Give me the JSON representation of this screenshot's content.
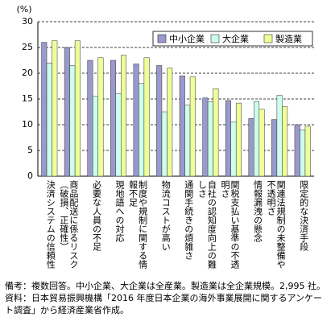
{
  "chart_data": {
    "type": "bar",
    "y_label": "(%)",
    "categories": [
      "決済システムの信頼性",
      "商品配送に係るリスク（破損、正確性）",
      "必要な人員の不足",
      "現地語への対応",
      "制度や規制に関する情報不足",
      "物流コストが高い",
      "通関手続きの煩雑さ",
      "自社の認知度向上の難しさ",
      "関税支払い基準の不透明さ",
      "情報漏洩の懸念",
      "関連法規制の未整備や不透明さ",
      "限定的な決済手段"
    ],
    "series": [
      {
        "name": "中小企業",
        "color": "#9999cc",
        "values": [
          26,
          25,
          22.5,
          22.5,
          21.8,
          21.5,
          19.5,
          15.2,
          14.7,
          11.2,
          11,
          10
        ]
      },
      {
        "name": "大企業",
        "color": "#ccffee",
        "values": [
          22,
          21.5,
          15.5,
          16,
          18,
          12.5,
          13.8,
          14.5,
          10.5,
          14.5,
          15.7,
          9
        ]
      },
      {
        "name": "製造業",
        "color": "#eeff99",
        "values": [
          26.3,
          26.3,
          23,
          23.5,
          23,
          21,
          19.3,
          17,
          14.2,
          13,
          13.5,
          9.7
        ]
      }
    ],
    "ylim": [
      0,
      30
    ],
    "yticks": [
      0,
      5,
      10,
      15,
      20,
      25,
      30
    ],
    "grid": true,
    "legend": "top-right",
    "notes": [
      "備考：複数回答。中小企業、大企業は全産業。製造業は全企業規模。2,995 社。",
      "資料：日本貿易振興機構「2016 年度日本企業の海外事業展開に関するアンケート調査」から経済産業省作成。"
    ]
  }
}
